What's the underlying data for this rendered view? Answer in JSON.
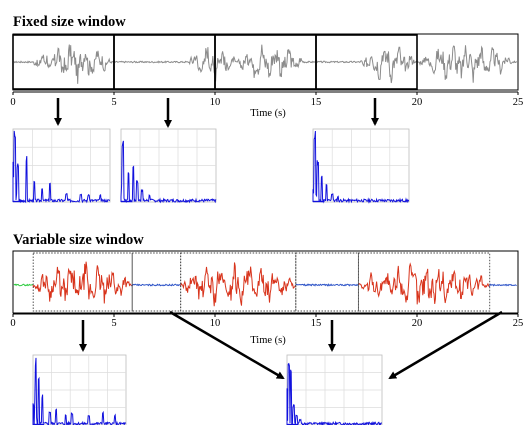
{
  "sections": {
    "fixed": {
      "heading": "Fixed size window",
      "x_ticks": [
        "0",
        "5",
        "10",
        "15",
        "20",
        "25"
      ],
      "x_title": "Time (s)",
      "window_boundaries_s": [
        0,
        5,
        10,
        15,
        20
      ],
      "arrows_to_spectra_s": [
        2.2,
        7.3,
        17.3
      ],
      "signal_color": "#8c8c8c",
      "window_color": "#000000"
    },
    "variable": {
      "heading": "Variable size window",
      "x_ticks": [
        "0",
        "5",
        "10",
        "15",
        "20",
        "25"
      ],
      "x_title": "Time (s)",
      "windows_s": [
        {
          "start": 1.0,
          "end": 5.9,
          "color": "#d8341c"
        },
        {
          "start": 5.9,
          "end": 8.3,
          "color": "#2f55c8"
        },
        {
          "start": 8.3,
          "end": 14.0,
          "color": "#d8341c"
        },
        {
          "start": 14.0,
          "end": 17.1,
          "color": "#2f55c8"
        },
        {
          "start": 17.1,
          "end": 23.6,
          "color": "#d8341c"
        }
      ],
      "leading_color": "#2ecc40",
      "trailing_color": "#2f55c8"
    }
  },
  "colors": {
    "spectrum": "#1111dd",
    "grid": "#dcdcdc",
    "arrow": "#000000"
  },
  "icons": [
    "arrow-down-icon",
    "arrow-diagonal-icon"
  ]
}
